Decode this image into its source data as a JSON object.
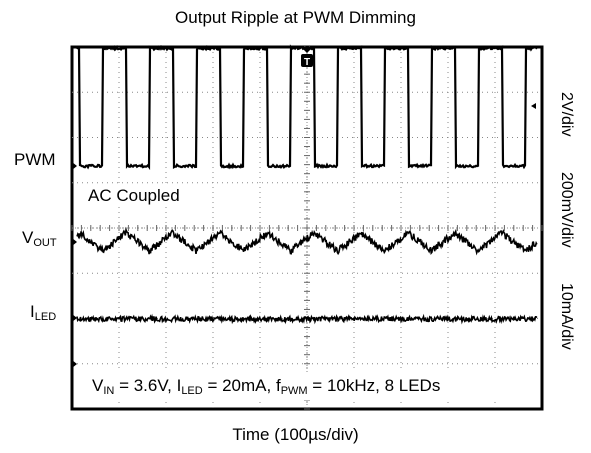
{
  "chart_data": {
    "type": "line",
    "title": "Output Ripple at PWM Dimming",
    "xlabel": "Time (100µs/div)",
    "x_divisions": 10,
    "y_divisions": 8,
    "grid": true,
    "trigger_marker": "T",
    "annotation": "AC Coupled",
    "conditions": {
      "vin_sym": "V",
      "vin_sub": "IN",
      "vin_val": " = 3.6V, ",
      "iled_sym": "I",
      "iled_sub": "LED",
      "iled_val": " = 20mA, ",
      "fpwm_sym": "f",
      "fpwm_sub": "PWM",
      "fpwm_val": " = 10kHz, 8 LEDs"
    },
    "series": [
      {
        "name": "PWM",
        "label_sym": "PWM",
        "label_sub": "",
        "scale": "2V/div",
        "waveform": "square",
        "period_us": 100,
        "duty": 0.5,
        "unit": "V",
        "high": 5.2,
        "low": 0.0
      },
      {
        "name": "VOUT",
        "label_sym": "V",
        "label_sub": "OUT",
        "scale": "200mV/div",
        "waveform": "triangle",
        "period_us": 100,
        "unit": "mV",
        "peak_to_peak": 80
      },
      {
        "name": "ILED",
        "label_sym": "I",
        "label_sub": "LED",
        "scale": "10mA/div",
        "waveform": "flat",
        "unit": "mA",
        "peak_to_peak": 1
      }
    ]
  }
}
